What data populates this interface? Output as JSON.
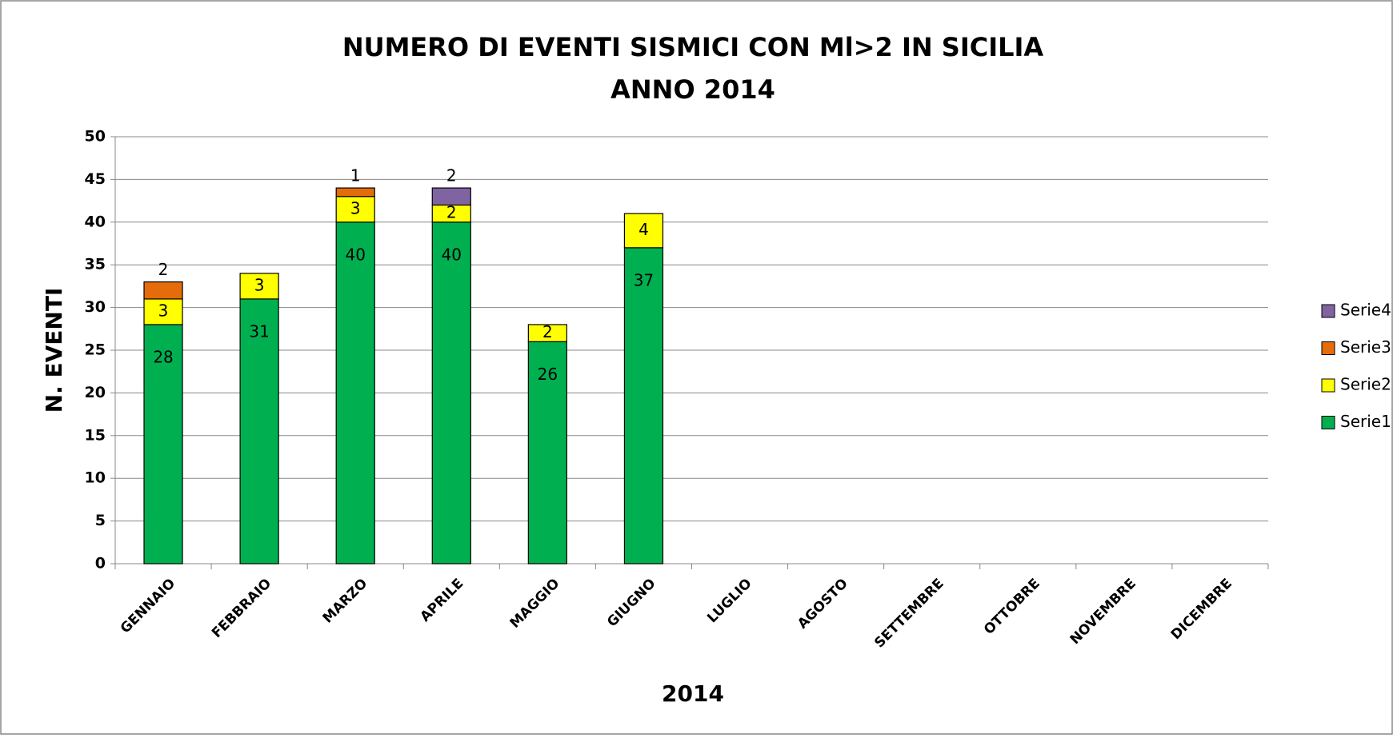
{
  "chart_data": {
    "type": "stacked_bar",
    "title": "NUMERO DI EVENTI SISMICI CON Ml>2 IN SICILIA",
    "subtitle": "ANNO 2014",
    "x_label": "2014",
    "y_label": "N. EVENTI",
    "categories": [
      "GENNAIO",
      "FEBBRAIO",
      "MARZO",
      "APRILE",
      "MAGGIO",
      "GIUGNO",
      "LUGLIO",
      "AGOSTO",
      "SETTEMBRE",
      "OTTOBRE",
      "NOVEMBRE",
      "DICEMBRE"
    ],
    "series": [
      {
        "name": "Serie1",
        "color": "#00b050",
        "values": [
          28,
          31,
          40,
          40,
          26,
          37,
          null,
          null,
          null,
          null,
          null,
          null
        ]
      },
      {
        "name": "Serie2",
        "color": "#ffff00",
        "values": [
          3,
          3,
          3,
          2,
          2,
          4,
          null,
          null,
          null,
          null,
          null,
          null
        ]
      },
      {
        "name": "Serie3",
        "color": "#e46c0a",
        "values": [
          2,
          null,
          1,
          null,
          null,
          null,
          null,
          null,
          null,
          null,
          null,
          null
        ]
      },
      {
        "name": "Serie4",
        "color": "#8064a2",
        "values": [
          null,
          null,
          null,
          2,
          null,
          null,
          null,
          null,
          null,
          null,
          null,
          null
        ]
      }
    ],
    "ylim": [
      0,
      50
    ],
    "yticks": [
      0,
      5,
      10,
      15,
      20,
      25,
      30,
      35,
      40,
      45,
      50
    ],
    "grid": true,
    "legend": "right"
  }
}
